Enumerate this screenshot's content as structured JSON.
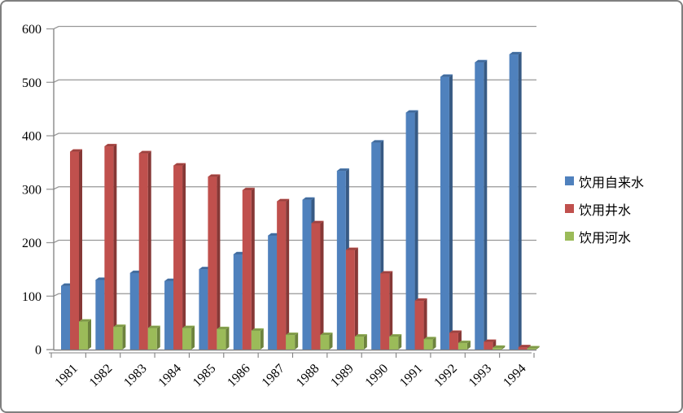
{
  "chart_data": {
    "type": "bar",
    "style": "3d-clustered-column",
    "title": "",
    "xlabel": "",
    "ylabel": "",
    "categories": [
      "1981",
      "1982",
      "1983",
      "1984",
      "1985",
      "1986",
      "1987",
      "1988",
      "1989",
      "1990",
      "1991",
      "1992",
      "1993",
      "1994"
    ],
    "series": [
      {
        "name": "饮用自来水",
        "color": "#4f81bd",
        "values": [
          119,
          130,
          143,
          128,
          150,
          178,
          213,
          280,
          334,
          387,
          443,
          510,
          537,
          552
        ]
      },
      {
        "name": "饮用井水",
        "color": "#c0504d",
        "values": [
          370,
          380,
          367,
          344,
          323,
          298,
          277,
          236,
          186,
          142,
          91,
          31,
          14,
          4
        ]
      },
      {
        "name": "饮用河水",
        "color": "#9bbb59",
        "values": [
          52,
          42,
          40,
          40,
          38,
          35,
          27,
          27,
          24,
          24,
          19,
          12,
          3,
          2
        ]
      }
    ],
    "ylim": [
      0,
      600
    ],
    "ytick_step": 100,
    "ytick_labels": [
      "0",
      "100",
      "200",
      "300",
      "400",
      "500",
      "600"
    ],
    "grid": true,
    "legend_position": "right",
    "gridline_color": "#979797",
    "axis_color": "#808080",
    "text_color": "#000000"
  }
}
